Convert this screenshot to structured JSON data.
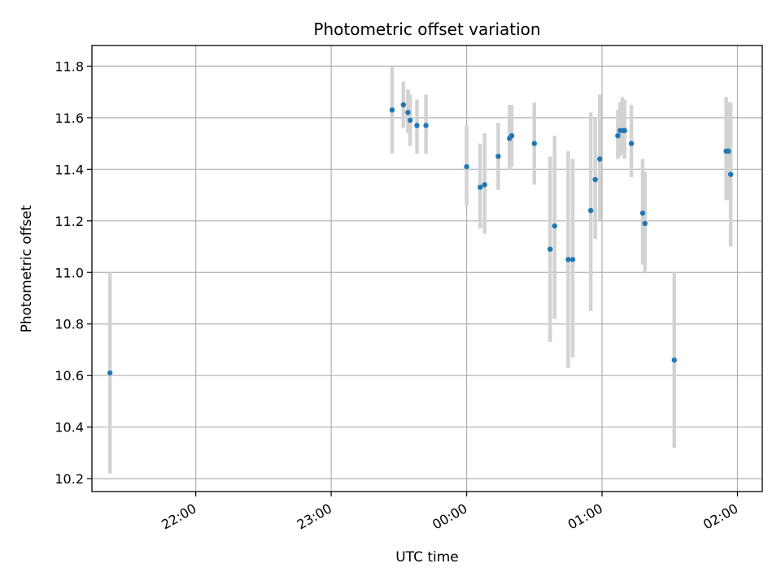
{
  "chart_data": {
    "type": "scatter",
    "title": "Photometric offset variation",
    "xlabel": "UTC time",
    "ylabel": "Photometric offset",
    "x_axis": "time",
    "xlim": [
      "21:14",
      "02:11"
    ],
    "ylim": [
      10.15,
      11.88
    ],
    "x_ticks": [
      "22:00",
      "23:00",
      "00:00",
      "01:00",
      "02:00"
    ],
    "y_ticks": [
      "10.2",
      "10.4",
      "10.6",
      "10.8",
      "11.0",
      "11.2",
      "11.4",
      "11.6",
      "11.8"
    ],
    "grid": true,
    "colors": {
      "point": "#1f77b4",
      "errorbar": "#d3d3d3",
      "grid": "#b0b0b0"
    },
    "points": [
      {
        "t": "21:22",
        "y": 10.61,
        "lo": 10.22,
        "hi": 11.0
      },
      {
        "t": "23:27",
        "y": 11.63,
        "lo": 11.46,
        "hi": 11.8
      },
      {
        "t": "23:32",
        "y": 11.65,
        "lo": 11.56,
        "hi": 11.74
      },
      {
        "t": "23:34",
        "y": 11.62,
        "lo": 11.54,
        "hi": 11.71
      },
      {
        "t": "23:35",
        "y": 11.59,
        "lo": 11.49,
        "hi": 11.69
      },
      {
        "t": "23:38",
        "y": 11.57,
        "lo": 11.46,
        "hi": 11.67
      },
      {
        "t": "23:42",
        "y": 11.57,
        "lo": 11.46,
        "hi": 11.69
      },
      {
        "t": "00:00",
        "y": 11.41,
        "lo": 11.26,
        "hi": 11.57
      },
      {
        "t": "00:06",
        "y": 11.33,
        "lo": 11.17,
        "hi": 11.5
      },
      {
        "t": "00:08",
        "y": 11.34,
        "lo": 11.15,
        "hi": 11.54
      },
      {
        "t": "00:14",
        "y": 11.45,
        "lo": 11.32,
        "hi": 11.58
      },
      {
        "t": "00:19",
        "y": 11.52,
        "lo": 11.4,
        "hi": 11.65
      },
      {
        "t": "00:20",
        "y": 11.53,
        "lo": 11.41,
        "hi": 11.65
      },
      {
        "t": "00:30",
        "y": 11.5,
        "lo": 11.34,
        "hi": 11.66
      },
      {
        "t": "00:37",
        "y": 11.09,
        "lo": 10.73,
        "hi": 11.45
      },
      {
        "t": "00:39",
        "y": 11.18,
        "lo": 10.82,
        "hi": 11.53
      },
      {
        "t": "00:45",
        "y": 11.05,
        "lo": 10.63,
        "hi": 11.47
      },
      {
        "t": "00:47",
        "y": 11.05,
        "lo": 10.67,
        "hi": 11.44
      },
      {
        "t": "00:55",
        "y": 11.24,
        "lo": 10.85,
        "hi": 11.62
      },
      {
        "t": "00:57",
        "y": 11.36,
        "lo": 11.13,
        "hi": 11.6
      },
      {
        "t": "00:59",
        "y": 11.44,
        "lo": 11.2,
        "hi": 11.69
      },
      {
        "t": "01:07",
        "y": 11.53,
        "lo": 11.44,
        "hi": 11.63
      },
      {
        "t": "01:08",
        "y": 11.55,
        "lo": 11.45,
        "hi": 11.66
      },
      {
        "t": "01:09",
        "y": 11.55,
        "lo": 11.46,
        "hi": 11.68
      },
      {
        "t": "01:10",
        "y": 11.55,
        "lo": 11.44,
        "hi": 11.67
      },
      {
        "t": "01:13",
        "y": 11.5,
        "lo": 11.37,
        "hi": 11.65
      },
      {
        "t": "01:18",
        "y": 11.23,
        "lo": 11.03,
        "hi": 11.44
      },
      {
        "t": "01:19",
        "y": 11.19,
        "lo": 11.0,
        "hi": 11.39
      },
      {
        "t": "01:32",
        "y": 10.66,
        "lo": 10.32,
        "hi": 11.0
      },
      {
        "t": "01:55",
        "y": 11.47,
        "lo": 11.28,
        "hi": 11.68
      },
      {
        "t": "01:56",
        "y": 11.47,
        "lo": 11.28,
        "hi": 11.66
      },
      {
        "t": "01:57",
        "y": 11.38,
        "lo": 11.1,
        "hi": 11.66
      }
    ]
  }
}
